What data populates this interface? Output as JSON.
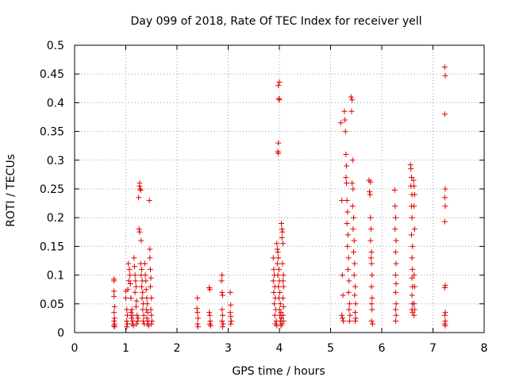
{
  "chart_data": {
    "type": "scatter",
    "title": "Day 099 of 2018, Rate Of TEC Index for receiver yell",
    "xlabel": "GPS time / hours",
    "ylabel": "ROTI / TECUs",
    "xlim": [
      0,
      8
    ],
    "ylim": [
      0,
      0.5
    ],
    "xticks": [
      "0",
      "1",
      "2",
      "3",
      "4",
      "5",
      "6",
      "7",
      "8"
    ],
    "yticks": [
      "0",
      "0.05",
      "0.1",
      "0.15",
      "0.2",
      "0.25",
      "0.3",
      "0.35",
      "0.4",
      "0.45",
      "0.5"
    ],
    "grid": true,
    "marker": "+",
    "color": "#e00000",
    "series": [
      {
        "name": "ROTI",
        "points": [
          [
            0.77,
            0.093
          ],
          [
            0.77,
            0.09
          ],
          [
            0.77,
            0.072
          ],
          [
            0.77,
            0.063
          ],
          [
            0.78,
            0.045
          ],
          [
            0.77,
            0.035
          ],
          [
            0.78,
            0.025
          ],
          [
            0.77,
            0.02
          ],
          [
            0.78,
            0.015
          ],
          [
            0.77,
            0.012
          ],
          [
            0.78,
            0.01
          ],
          [
            1.0,
            0.072
          ],
          [
            1.0,
            0.06
          ],
          [
            1.02,
            0.04
          ],
          [
            1.03,
            0.03
          ],
          [
            1.02,
            0.02
          ],
          [
            1.03,
            0.015
          ],
          [
            1.02,
            0.01
          ],
          [
            1.04,
            0.075
          ],
          [
            1.05,
            0.12
          ],
          [
            1.07,
            0.11
          ],
          [
            1.08,
            0.1
          ],
          [
            1.06,
            0.09
          ],
          [
            1.09,
            0.085
          ],
          [
            1.1,
            0.06
          ],
          [
            1.12,
            0.04
          ],
          [
            1.1,
            0.035
          ],
          [
            1.13,
            0.03
          ],
          [
            1.11,
            0.025
          ],
          [
            1.14,
            0.02
          ],
          [
            1.12,
            0.015
          ],
          [
            1.15,
            0.012
          ],
          [
            1.16,
            0.13
          ],
          [
            1.17,
            0.115
          ],
          [
            1.18,
            0.1
          ],
          [
            1.19,
            0.09
          ],
          [
            1.2,
            0.08
          ],
          [
            1.18,
            0.07
          ],
          [
            1.21,
            0.055
          ],
          [
            1.2,
            0.045
          ],
          [
            1.22,
            0.03
          ],
          [
            1.23,
            0.02
          ],
          [
            1.21,
            0.015
          ],
          [
            1.24,
            0.025
          ],
          [
            1.25,
            0.235
          ],
          [
            1.27,
            0.255
          ],
          [
            1.28,
            0.25
          ],
          [
            1.29,
            0.248
          ],
          [
            1.27,
            0.26
          ],
          [
            1.26,
            0.18
          ],
          [
            1.27,
            0.175
          ],
          [
            1.3,
            0.16
          ],
          [
            1.29,
            0.12
          ],
          [
            1.31,
            0.11
          ],
          [
            1.3,
            0.1
          ],
          [
            1.32,
            0.09
          ],
          [
            1.31,
            0.08
          ],
          [
            1.33,
            0.07
          ],
          [
            1.32,
            0.06
          ],
          [
            1.34,
            0.05
          ],
          [
            1.33,
            0.04
          ],
          [
            1.35,
            0.03
          ],
          [
            1.34,
            0.02
          ],
          [
            1.36,
            0.015
          ],
          [
            1.37,
            0.12
          ],
          [
            1.38,
            0.1
          ],
          [
            1.39,
            0.09
          ],
          [
            1.4,
            0.075
          ],
          [
            1.41,
            0.06
          ],
          [
            1.42,
            0.05
          ],
          [
            1.4,
            0.04
          ],
          [
            1.43,
            0.035
          ],
          [
            1.41,
            0.025
          ],
          [
            1.44,
            0.02
          ],
          [
            1.42,
            0.015
          ],
          [
            1.45,
            0.012
          ],
          [
            1.46,
            0.23
          ],
          [
            1.47,
            0.145
          ],
          [
            1.47,
            0.13
          ],
          [
            1.48,
            0.11
          ],
          [
            1.49,
            0.095
          ],
          [
            1.48,
            0.08
          ],
          [
            1.5,
            0.06
          ],
          [
            1.49,
            0.04
          ],
          [
            1.5,
            0.03
          ],
          [
            1.51,
            0.02
          ],
          [
            1.5,
            0.015
          ],
          [
            2.4,
            0.06
          ],
          [
            2.39,
            0.042
          ],
          [
            2.4,
            0.035
          ],
          [
            2.41,
            0.025
          ],
          [
            2.4,
            0.015
          ],
          [
            2.41,
            0.01
          ],
          [
            2.63,
            0.078
          ],
          [
            2.64,
            0.075
          ],
          [
            2.63,
            0.035
          ],
          [
            2.64,
            0.03
          ],
          [
            2.65,
            0.02
          ],
          [
            2.64,
            0.015
          ],
          [
            2.66,
            0.012
          ],
          [
            2.88,
            0.1
          ],
          [
            2.87,
            0.09
          ],
          [
            2.88,
            0.07
          ],
          [
            2.89,
            0.065
          ],
          [
            2.88,
            0.04
          ],
          [
            2.89,
            0.03
          ],
          [
            2.88,
            0.02
          ],
          [
            2.9,
            0.015
          ],
          [
            2.89,
            0.01
          ],
          [
            3.04,
            0.07
          ],
          [
            3.05,
            0.048
          ],
          [
            3.04,
            0.035
          ],
          [
            3.05,
            0.028
          ],
          [
            3.06,
            0.02
          ],
          [
            3.05,
            0.015
          ],
          [
            3.88,
            0.13
          ],
          [
            3.89,
            0.11
          ],
          [
            3.9,
            0.1
          ],
          [
            3.88,
            0.09
          ],
          [
            3.91,
            0.08
          ],
          [
            3.89,
            0.07
          ],
          [
            3.92,
            0.06
          ],
          [
            3.9,
            0.05
          ],
          [
            3.93,
            0.04
          ],
          [
            3.91,
            0.03
          ],
          [
            3.94,
            0.02
          ],
          [
            3.92,
            0.015
          ],
          [
            3.95,
            0.012
          ],
          [
            3.95,
            0.155
          ],
          [
            3.96,
            0.145
          ],
          [
            3.97,
            0.14
          ],
          [
            3.98,
            0.13
          ],
          [
            3.96,
            0.12
          ],
          [
            3.99,
            0.11
          ],
          [
            3.97,
            0.1
          ],
          [
            4.0,
            0.09
          ],
          [
            3.98,
            0.08
          ],
          [
            4.01,
            0.07
          ],
          [
            3.99,
            0.06
          ],
          [
            4.02,
            0.05
          ],
          [
            4.0,
            0.04
          ],
          [
            4.03,
            0.035
          ],
          [
            4.01,
            0.03
          ],
          [
            4.04,
            0.025
          ],
          [
            4.02,
            0.02
          ],
          [
            4.05,
            0.015
          ],
          [
            4.03,
            0.012
          ],
          [
            3.98,
            0.43
          ],
          [
            4.0,
            0.436
          ],
          [
            3.99,
            0.407
          ],
          [
            4.0,
            0.405
          ],
          [
            3.98,
            0.33
          ],
          [
            3.97,
            0.315
          ],
          [
            3.98,
            0.312
          ],
          [
            4.04,
            0.19
          ],
          [
            4.05,
            0.18
          ],
          [
            4.06,
            0.175
          ],
          [
            4.05,
            0.165
          ],
          [
            4.07,
            0.155
          ],
          [
            4.06,
            0.12
          ],
          [
            4.08,
            0.1
          ],
          [
            4.07,
            0.09
          ],
          [
            4.08,
            0.08
          ],
          [
            4.07,
            0.06
          ],
          [
            4.08,
            0.045
          ],
          [
            4.07,
            0.03
          ],
          [
            4.08,
            0.02
          ],
          [
            5.2,
            0.365
          ],
          [
            5.22,
            0.23
          ],
          [
            5.23,
            0.1
          ],
          [
            5.24,
            0.065
          ],
          [
            5.22,
            0.03
          ],
          [
            5.25,
            0.02
          ],
          [
            5.23,
            0.025
          ],
          [
            5.27,
            0.385
          ],
          [
            5.28,
            0.37
          ],
          [
            5.29,
            0.35
          ],
          [
            5.3,
            0.31
          ],
          [
            5.31,
            0.29
          ],
          [
            5.3,
            0.27
          ],
          [
            5.31,
            0.26
          ],
          [
            5.32,
            0.23
          ],
          [
            5.33,
            0.21
          ],
          [
            5.32,
            0.19
          ],
          [
            5.34,
            0.17
          ],
          [
            5.33,
            0.15
          ],
          [
            5.35,
            0.13
          ],
          [
            5.34,
            0.11
          ],
          [
            5.36,
            0.09
          ],
          [
            5.35,
            0.07
          ],
          [
            5.37,
            0.05
          ],
          [
            5.36,
            0.04
          ],
          [
            5.38,
            0.03
          ],
          [
            5.37,
            0.02
          ],
          [
            5.4,
            0.41
          ],
          [
            5.42,
            0.405
          ],
          [
            5.41,
            0.385
          ],
          [
            5.43,
            0.3
          ],
          [
            5.42,
            0.26
          ],
          [
            5.44,
            0.25
          ],
          [
            5.43,
            0.22
          ],
          [
            5.45,
            0.2
          ],
          [
            5.44,
            0.18
          ],
          [
            5.46,
            0.16
          ],
          [
            5.45,
            0.14
          ],
          [
            5.47,
            0.12
          ],
          [
            5.46,
            0.1
          ],
          [
            5.48,
            0.08
          ],
          [
            5.47,
            0.065
          ],
          [
            5.49,
            0.05
          ],
          [
            5.48,
            0.035
          ],
          [
            5.49,
            0.025
          ],
          [
            5.48,
            0.02
          ],
          [
            5.75,
            0.265
          ],
          [
            5.78,
            0.262
          ],
          [
            5.76,
            0.245
          ],
          [
            5.77,
            0.24
          ],
          [
            5.78,
            0.2
          ],
          [
            5.79,
            0.18
          ],
          [
            5.78,
            0.16
          ],
          [
            5.8,
            0.14
          ],
          [
            5.79,
            0.13
          ],
          [
            5.8,
            0.12
          ],
          [
            5.81,
            0.1
          ],
          [
            5.8,
            0.08
          ],
          [
            5.81,
            0.06
          ],
          [
            5.8,
            0.05
          ],
          [
            5.81,
            0.04
          ],
          [
            5.8,
            0.02
          ],
          [
            5.82,
            0.015
          ],
          [
            6.25,
            0.248
          ],
          [
            6.26,
            0.22
          ],
          [
            6.27,
            0.2
          ],
          [
            6.26,
            0.18
          ],
          [
            6.28,
            0.16
          ],
          [
            6.27,
            0.14
          ],
          [
            6.28,
            0.12
          ],
          [
            6.27,
            0.1
          ],
          [
            6.28,
            0.085
          ],
          [
            6.27,
            0.07
          ],
          [
            6.28,
            0.05
          ],
          [
            6.27,
            0.04
          ],
          [
            6.28,
            0.03
          ],
          [
            6.27,
            0.02
          ],
          [
            6.56,
            0.292
          ],
          [
            6.57,
            0.285
          ],
          [
            6.58,
            0.27
          ],
          [
            6.57,
            0.255
          ],
          [
            6.59,
            0.24
          ],
          [
            6.58,
            0.22
          ],
          [
            6.59,
            0.2
          ],
          [
            6.58,
            0.17
          ],
          [
            6.6,
            0.15
          ],
          [
            6.59,
            0.13
          ],
          [
            6.6,
            0.11
          ],
          [
            6.59,
            0.095
          ],
          [
            6.6,
            0.08
          ],
          [
            6.59,
            0.065
          ],
          [
            6.6,
            0.05
          ],
          [
            6.59,
            0.04
          ],
          [
            6.6,
            0.035
          ],
          [
            6.62,
            0.265
          ],
          [
            6.63,
            0.255
          ],
          [
            6.64,
            0.24
          ],
          [
            6.63,
            0.22
          ],
          [
            6.64,
            0.18
          ],
          [
            6.63,
            0.1
          ],
          [
            6.64,
            0.08
          ],
          [
            6.63,
            0.05
          ],
          [
            6.64,
            0.04
          ],
          [
            6.63,
            0.03
          ],
          [
            7.23,
            0.462
          ],
          [
            7.24,
            0.447
          ],
          [
            7.23,
            0.38
          ],
          [
            7.24,
            0.25
          ],
          [
            7.23,
            0.235
          ],
          [
            7.24,
            0.22
          ],
          [
            7.23,
            0.193
          ],
          [
            7.24,
            0.082
          ],
          [
            7.23,
            0.078
          ],
          [
            7.24,
            0.035
          ],
          [
            7.23,
            0.03
          ],
          [
            7.24,
            0.02
          ],
          [
            7.23,
            0.015
          ],
          [
            7.24,
            0.012
          ]
        ]
      }
    ]
  }
}
